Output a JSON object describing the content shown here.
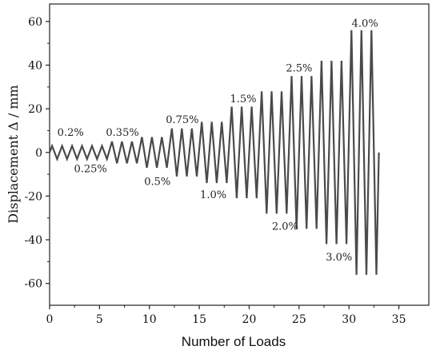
{
  "chart_data": {
    "type": "line",
    "xlabel": "Number of Loads",
    "ylabel": "Displacement Δ / mm",
    "xlim": [
      0,
      38
    ],
    "ylim": [
      -70,
      68
    ],
    "xticks": [
      0,
      5,
      10,
      15,
      20,
      25,
      30,
      35
    ],
    "yticks": [
      -60,
      -40,
      -20,
      0,
      20,
      40,
      60
    ],
    "grid": false,
    "line_color": "#4a4a4a",
    "series": [
      {
        "name": "",
        "x": [
          0,
          0.25,
          0.75,
          1.25,
          1.75,
          2.25,
          2.75,
          3.25,
          3.75,
          4.25,
          4.75,
          5.25,
          5.75,
          6.25,
          6.75,
          7.25,
          7.75,
          8.25,
          8.75,
          9.25,
          9.75,
          10.25,
          10.75,
          11.25,
          11.75,
          12.25,
          12.75,
          13.25,
          13.75,
          14.25,
          14.75,
          15.25,
          15.75,
          16.25,
          16.75,
          17.25,
          17.75,
          18.25,
          18.75,
          19.25,
          19.75,
          20.25,
          20.75,
          21.25,
          21.75,
          22.25,
          22.75,
          23.25,
          23.75,
          24.25,
          24.75,
          25.25,
          25.75,
          26.25,
          26.75,
          27.25,
          27.75,
          28.25,
          28.75,
          29.25,
          29.75,
          30.25,
          30.75,
          31.25,
          31.75,
          32.25,
          32.75,
          33
        ],
        "values": [
          0,
          3,
          -3,
          3,
          -3,
          3,
          -3,
          3,
          -3,
          3,
          -3,
          3,
          -3,
          5,
          -5,
          5,
          -5,
          5,
          -5,
          7,
          -7,
          7,
          -7,
          7,
          -7,
          11,
          -11,
          11,
          -11,
          11,
          -11,
          14,
          -14,
          14,
          -14,
          14,
          -14,
          21,
          -21,
          21,
          -21,
          21,
          -21,
          28,
          -28,
          28,
          -28,
          28,
          -28,
          35,
          -35,
          35,
          -35,
          35,
          -35,
          42,
          -42,
          42,
          -42,
          42,
          -42,
          56,
          -56,
          56,
          -56,
          56,
          -56,
          0
        ]
      }
    ],
    "annotations": [
      {
        "text": "0.2%",
        "x": 2.1,
        "y": 9
      },
      {
        "text": "0.25%",
        "x": 4.1,
        "y": -7.5
      },
      {
        "text": "0.35%",
        "x": 7.3,
        "y": 9
      },
      {
        "text": "0.5%",
        "x": 10.8,
        "y": -13.5
      },
      {
        "text": "0.75%",
        "x": 13.3,
        "y": 15
      },
      {
        "text": "1.0%",
        "x": 16.4,
        "y": -19.5
      },
      {
        "text": "1.5%",
        "x": 19.4,
        "y": 24.5
      },
      {
        "text": "2.0%",
        "x": 23.6,
        "y": -34
      },
      {
        "text": "2.5%",
        "x": 25.0,
        "y": 38.5
      },
      {
        "text": "3.0%",
        "x": 29.0,
        "y": -48
      },
      {
        "text": "4.0%",
        "x": 31.6,
        "y": 59
      }
    ]
  }
}
